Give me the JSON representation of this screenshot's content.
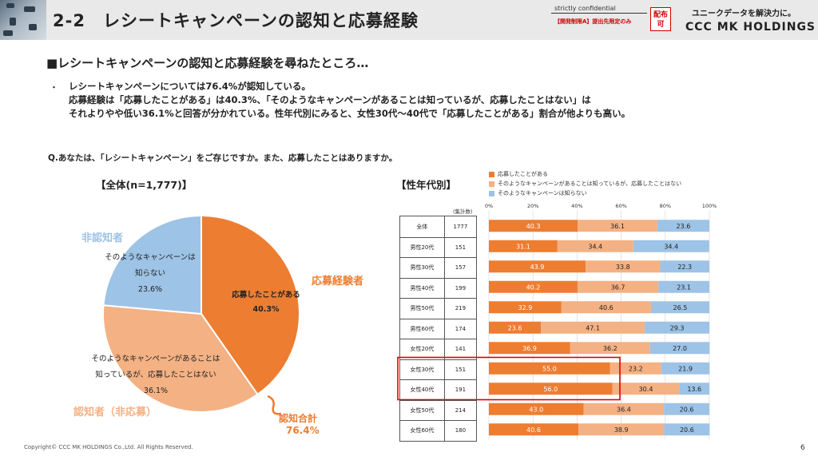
{
  "header": {
    "section_title": "2-2　レシートキャンペーンの認知と応募経験",
    "confidential_label": "strictly confidential",
    "confidential_note": "【開発制限A】提出先限定のみ",
    "distribution_badge": "配布可",
    "slogan": "ユニークデータを解決力に。",
    "company": "CCC MK HOLDINGS"
  },
  "subtitle": "■レシートキャンペーンの認知と応募経験を尋ねたところ…",
  "bullet": {
    "dot": "・",
    "line1": "レシートキャンペーンについては76.4%が認知している。",
    "line2": "応募経験は「応募したことがある」は40.3%、「そのようなキャンペーンがあることは知っているが、応募したことはない」は",
    "line3": "それよりやや低い36.1%と回答が分かれている。性年代別にみると、女性30代〜40代で「応募したことがある」割合が他よりも高い。"
  },
  "question": "Q.あなたは、「レシートキャンペーン」をご存じですか。また、応募したことはありますか。",
  "all_label": "【全体(n=1,777)】",
  "gen_label": "【性年代別】",
  "pie_labels": {
    "non_aware_group": "非認知者",
    "applied_group": "応募経験者",
    "aware_group": "認知者（非応募）",
    "total_aware_title": "認知合計",
    "total_aware_value": "76.4%",
    "applied_line1": "応募したことがある",
    "applied_value": "40.3%",
    "aware_line1": "そのようなキャンペーンがあることは",
    "aware_line2": "知っているが、応募したことはない",
    "aware_value": "36.1%",
    "unaware_line1": "そのようなキャンペーンは",
    "unaware_line2": "知らない",
    "unaware_value": "23.6%"
  },
  "n_header": "(集計数)",
  "footer": {
    "copyright": "Copyright© CCC MK HOLDINGS Co.,Ltd. All Rights Reserved.",
    "page": "6"
  },
  "colors": {
    "applied": "#ed7d31",
    "aware": "#f4b183",
    "unaware": "#9dc3e6",
    "group_label": "#ed7d31",
    "non_aware_label": "#9dc3e6",
    "highlight": "#e00000"
  },
  "chart_data": [
    {
      "type": "pie",
      "title": "【全体(n=1,777)】",
      "categories": [
        "応募したことがある",
        "そのようなキャンペーンがあることは知っているが、応募したことはない",
        "そのようなキャンペーンは知らない"
      ],
      "values": [
        40.3,
        36.1,
        23.6
      ]
    },
    {
      "type": "bar",
      "orientation": "horizontal",
      "stacked": true,
      "title": "【性年代別】",
      "legend": [
        "応募したことがある",
        "そのようなキャンペーンがあることは知っているが、応募したことはない",
        "そのようなキャンペーンは知らない"
      ],
      "xticks": [
        "0%",
        "20%",
        "40%",
        "60%",
        "80%",
        "100%"
      ],
      "xlim": [
        0,
        100
      ],
      "categories": [
        "全体",
        "男性20代",
        "男性30代",
        "男性40代",
        "男性50代",
        "男性60代",
        "女性20代",
        "女性30代",
        "女性40代",
        "女性50代",
        "女性60代"
      ],
      "n": [
        "1777",
        "151",
        "157",
        "199",
        "219",
        "174",
        "141",
        "151",
        "191",
        "214",
        "180"
      ],
      "highlighted": [
        "女性30代",
        "女性40代"
      ],
      "series": [
        {
          "name": "応募したことがある",
          "values": [
            40.3,
            31.1,
            43.9,
            40.2,
            32.9,
            23.6,
            36.9,
            55.0,
            56.0,
            43.0,
            40.6
          ]
        },
        {
          "name": "そのようなキャンペーンがあることは知っているが、応募したことはない",
          "values": [
            36.1,
            34.4,
            33.8,
            36.7,
            40.6,
            47.1,
            36.2,
            23.2,
            30.4,
            36.4,
            38.9
          ]
        },
        {
          "name": "そのようなキャンペーンは知らない",
          "values": [
            23.6,
            34.4,
            22.3,
            23.1,
            26.5,
            29.3,
            27.0,
            21.9,
            13.6,
            20.6,
            20.6
          ]
        }
      ]
    }
  ]
}
